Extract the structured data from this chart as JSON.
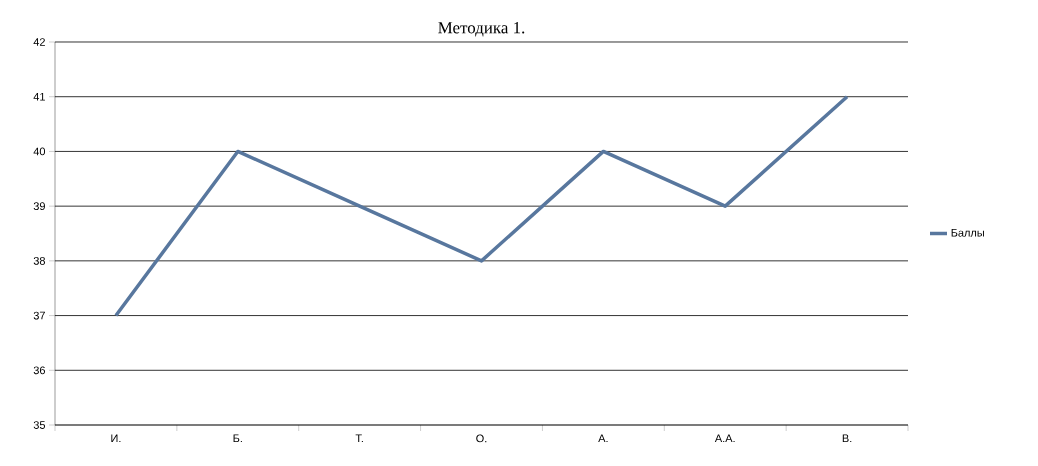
{
  "chart_data": {
    "type": "line",
    "title": "Методика 1.",
    "categories": [
      "И.",
      "Б.",
      "Т.",
      "О.",
      "А.",
      "А.А.",
      "В."
    ],
    "series": [
      {
        "name": "Баллы",
        "color": "#58779e",
        "values": [
          37,
          40,
          39,
          38,
          40,
          39,
          41
        ]
      }
    ],
    "ylim": [
      35,
      42
    ],
    "yticks": [
      35,
      36,
      37,
      38,
      39,
      40,
      41,
      42
    ],
    "grid": "y",
    "legend": "right",
    "marker": "none",
    "line_style": "solid"
  }
}
